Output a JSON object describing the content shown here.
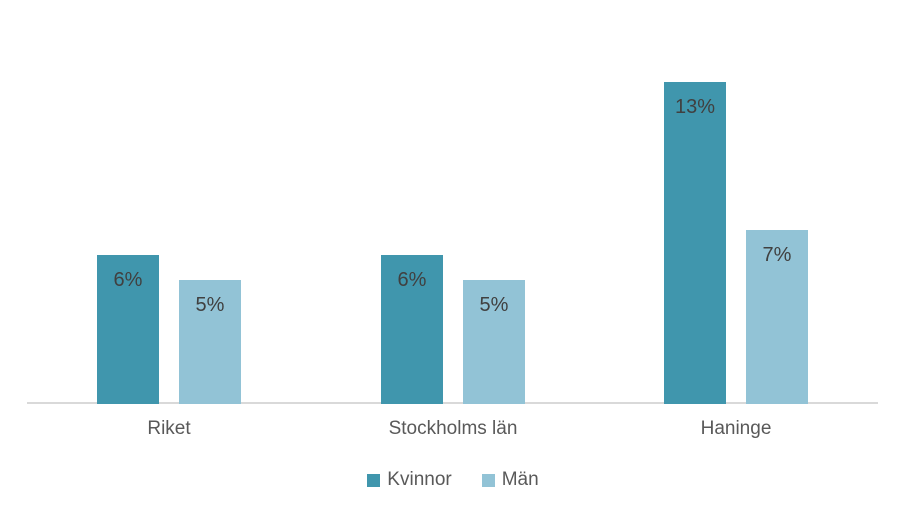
{
  "chart_data": {
    "type": "bar",
    "title": "",
    "xlabel": "",
    "ylabel": "",
    "value_suffix": "%",
    "grid": false,
    "axis_visible": "x-baseline-only",
    "legend_position": "bottom",
    "ylim": [
      0,
      16
    ],
    "categories": [
      "Riket",
      "Stockholms län",
      "Haninge"
    ],
    "series": [
      {
        "name": "Kvinnor",
        "color": "#4096ad",
        "values": [
          6,
          6,
          13
        ],
        "labels": [
          "6%",
          "6%",
          "13%"
        ]
      },
      {
        "name": "Män",
        "color": "#92c3d6",
        "values": [
          5,
          5,
          7
        ],
        "labels": [
          "5%",
          "5%",
          "7%"
        ]
      }
    ],
    "colors": {
      "axis_line": "#d9d9d9",
      "data_label_text": "#404040",
      "category_text": "#595959",
      "legend_text": "#595959",
      "background": "#ffffff"
    }
  },
  "legend": {
    "items": [
      {
        "label": "Kvinnor"
      },
      {
        "label": "Män"
      }
    ]
  }
}
